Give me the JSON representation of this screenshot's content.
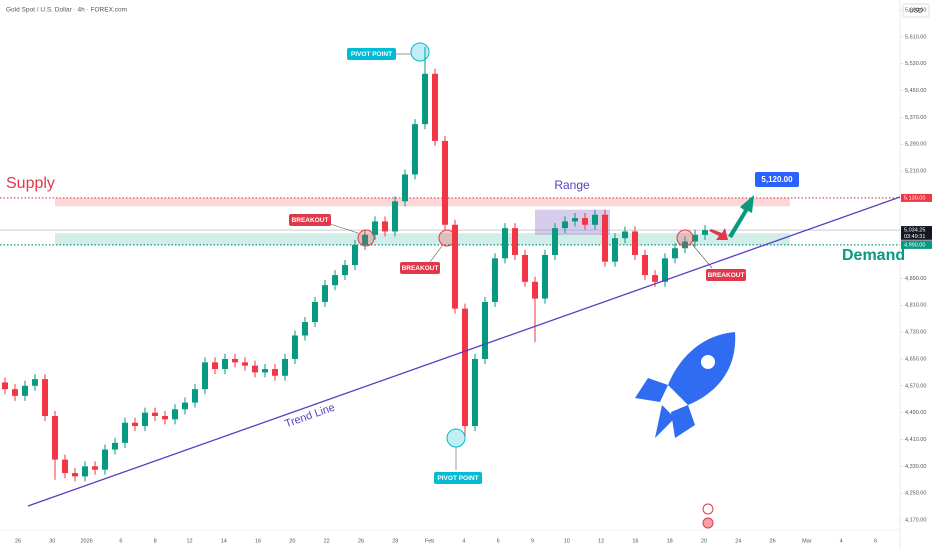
{
  "chart_data": {
    "type": "candlestick",
    "title": "Gold Spot / U.S. Dollar · 4h · FOREX.com",
    "currency": "USD",
    "ylim": [
      4170,
      5720
    ],
    "yticks": [
      {
        "value": 4170,
        "label": "4,170.00"
      },
      {
        "value": 4250,
        "label": "4,250.00"
      },
      {
        "value": 4330,
        "label": "4,330.00"
      },
      {
        "value": 4410,
        "label": "4,410.00"
      },
      {
        "value": 4490,
        "label": "4,490.00"
      },
      {
        "value": 4570,
        "label": "4,570.00"
      },
      {
        "value": 4650,
        "label": "4,650.00"
      },
      {
        "value": 4730,
        "label": "4,730.00"
      },
      {
        "value": 4810,
        "label": "4,810.00"
      },
      {
        "value": 4890,
        "label": "4,890.00"
      },
      {
        "value": 5210,
        "label": "5,210.00"
      },
      {
        "value": 5290,
        "label": "5,290.00"
      },
      {
        "value": 5370,
        "label": "5,370.00"
      },
      {
        "value": 5450,
        "label": "5,450.00"
      },
      {
        "value": 5530,
        "label": "5,530.00"
      },
      {
        "value": 5610,
        "label": "5,610.00"
      },
      {
        "value": 5690,
        "label": "5,690.00"
      }
    ],
    "x_labels": [
      "26",
      "30",
      "2026",
      "6",
      "8",
      "12",
      "14",
      "16",
      "20",
      "22",
      "26",
      "28",
      "Feb",
      "4",
      "6",
      "9",
      "10",
      "12",
      "16",
      "18",
      "20",
      "24",
      "26",
      "Mar",
      "4",
      "6"
    ],
    "up_color": "#089981",
    "down_color": "#f23645",
    "series": [
      {
        "open": [
          4580,
          4560,
          4540,
          4570,
          4590,
          4480,
          4350,
          4310,
          4300,
          4330,
          4320,
          4380,
          4400,
          4460,
          4450,
          4490,
          4480,
          4470,
          4500,
          4520,
          4560,
          4640,
          4620,
          4650,
          4640,
          4630,
          4610,
          4620,
          4600,
          4650,
          4720,
          4760,
          4820,
          4870,
          4900,
          4930,
          4990,
          5020,
          5060,
          5030,
          5120,
          5200,
          5350,
          5500,
          5300,
          5050,
          4800,
          4450,
          4650,
          4820,
          4950,
          5040,
          4960,
          4880,
          4830,
          4960,
          5040,
          5060,
          5070,
          5050,
          5080,
          4940,
          5010,
          5030,
          4960,
          4900,
          4880,
          4950,
          4980,
          5000,
          5020
        ],
        "high": [
          4595,
          4575,
          4585,
          4605,
          4605,
          4495,
          4365,
          4325,
          4345,
          4345,
          4395,
          4415,
          4475,
          4475,
          4505,
          4505,
          4495,
          4515,
          4535,
          4575,
          4655,
          4655,
          4665,
          4665,
          4655,
          4645,
          4635,
          4635,
          4665,
          4735,
          4775,
          4835,
          4885,
          4915,
          4945,
          5005,
          5035,
          5075,
          5075,
          5135,
          5215,
          5365,
          5580,
          5515,
          5315,
          5065,
          4815,
          4665,
          4835,
          4965,
          5055,
          5055,
          4975,
          4895,
          4975,
          5055,
          5075,
          5085,
          5085,
          5095,
          5095,
          5025,
          5045,
          5045,
          4975,
          4915,
          4965,
          4995,
          5015,
          5035,
          5049
        ],
        "low": [
          4545,
          4525,
          4525,
          4555,
          4465,
          4290,
          4295,
          4285,
          4285,
          4305,
          4305,
          4365,
          4385,
          4435,
          4435,
          4465,
          4455,
          4455,
          4485,
          4505,
          4545,
          4605,
          4605,
          4625,
          4615,
          4595,
          4595,
          4585,
          4585,
          4635,
          4705,
          4745,
          4805,
          4855,
          4885,
          4915,
          4975,
          5005,
          5015,
          5015,
          5105,
          5185,
          5335,
          5285,
          5035,
          4785,
          4420,
          4435,
          4635,
          4805,
          4935,
          4945,
          4865,
          4700,
          4815,
          4945,
          5025,
          5045,
          5035,
          5035,
          4925,
          4925,
          4995,
          4945,
          4885,
          4865,
          4865,
          4935,
          4965,
          4985,
          5005
        ],
        "close": [
          4560,
          4540,
          4570,
          4590,
          4480,
          4350,
          4310,
          4300,
          4330,
          4320,
          4380,
          4400,
          4460,
          4450,
          4490,
          4480,
          4470,
          4500,
          4520,
          4560,
          4640,
          4620,
          4650,
          4640,
          4630,
          4610,
          4620,
          4600,
          4650,
          4720,
          4760,
          4820,
          4870,
          4900,
          4930,
          4990,
          5020,
          5060,
          5030,
          5120,
          5200,
          5350,
          5500,
          5300,
          5050,
          4800,
          4450,
          4650,
          4820,
          4950,
          5040,
          4960,
          4880,
          4830,
          4960,
          5040,
          5060,
          5070,
          5050,
          5080,
          4940,
          5010,
          5030,
          4960,
          4900,
          4880,
          4950,
          4980,
          5000,
          5020,
          5034.25
        ]
      }
    ],
    "zones": {
      "supply": [
        5105,
        5130
      ],
      "demand": [
        4990,
        5025
      ],
      "range": [
        5020,
        5095
      ]
    },
    "levels": [
      {
        "value": 5130,
        "label": "5,130.00",
        "color": "#f23645"
      },
      {
        "value": 5034.25,
        "label": "5,034.25",
        "color": "#131722",
        "time": "03:49:31"
      },
      {
        "value": 4996.62,
        "label": "4,996.62",
        "color": "#9598a1"
      },
      {
        "value": 4990,
        "label": "4,990.00",
        "color": "#089981"
      }
    ],
    "annotations": {
      "supply": "Supply",
      "demand": "Demand",
      "range": "Range",
      "trend_line": "Trend Line",
      "pivot_top": "PIVOT POINT",
      "pivot_bottom": "PIVOT POINT",
      "breakout_1": "BREAKOUT",
      "breakout_2": "BREAKOUT",
      "breakout_3": "BREAKOUT",
      "target": "5,120.00"
    }
  }
}
